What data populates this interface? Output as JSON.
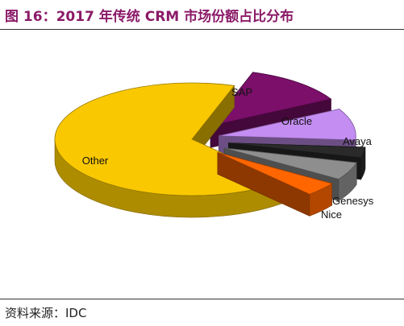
{
  "header": {
    "title": "图 16：2017 年传统 CRM 市场份额占比分布"
  },
  "footer": {
    "source": "资料来源：IDC"
  },
  "chart_data": {
    "type": "pie",
    "style": "3d-exploded",
    "categories": [
      "SAP",
      "Oracle",
      "Avaya",
      "Genesys",
      "Nice",
      "Other"
    ],
    "values": [
      12.1,
      9.1,
      3.0,
      5.1,
      4.0,
      66.7
    ],
    "colors": [
      "#7B0F6A",
      "#C48DF2",
      "#2A2A2A",
      "#8E8E8E",
      "#FF6600",
      "#F9C800"
    ],
    "legend": "none"
  }
}
